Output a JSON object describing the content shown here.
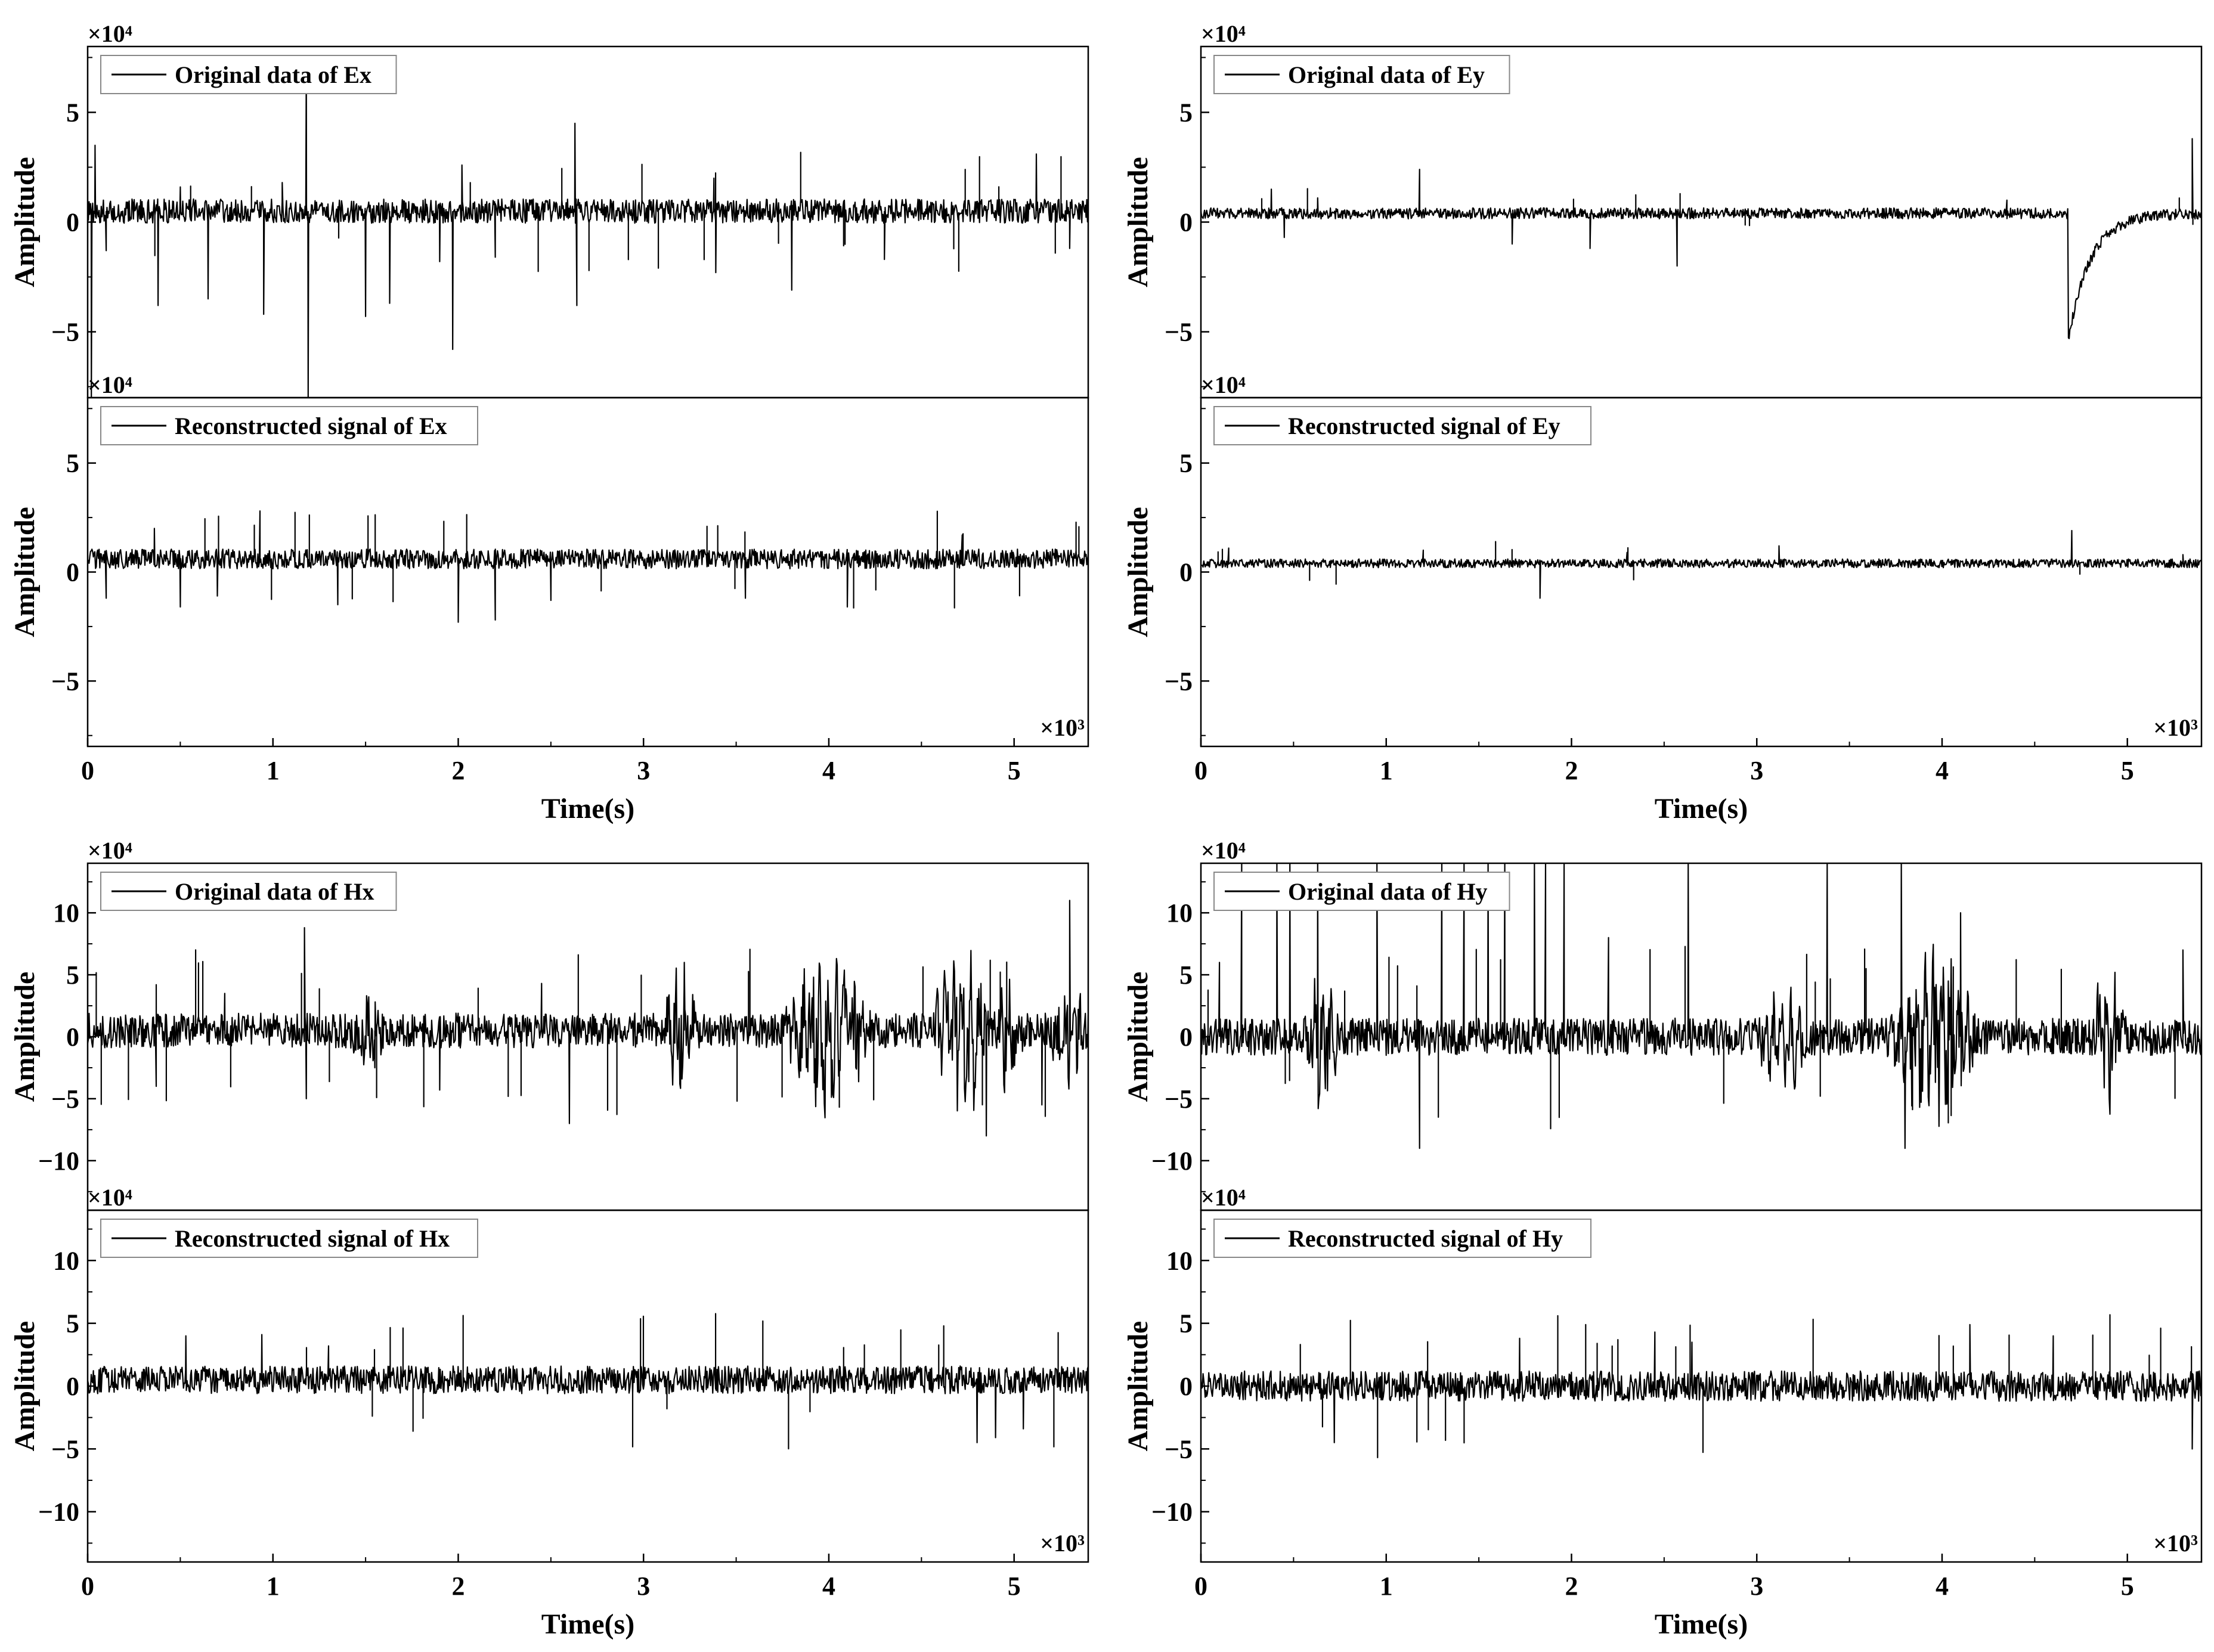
{
  "figure": {
    "x_multiplier": "×10³",
    "y_multiplier": "×10⁴"
  },
  "chart_data": [
    {
      "type": "line",
      "id": "ex",
      "xlabel": "Time(s)",
      "ylabel": "Amplitude",
      "xlim": [
        0,
        5.4
      ],
      "xticks": [
        0,
        1,
        2,
        3,
        4,
        5
      ],
      "ylim": [
        -8,
        8
      ],
      "yticks": [
        -5,
        0,
        5
      ],
      "grid": false,
      "legend_position": "top-left",
      "color": "#000000",
      "panels": [
        {
          "label": "Original data of Ex",
          "baseline": 0.5,
          "noise": 0.55,
          "spike_rate": 0.35,
          "spikes": [
            [
              0.02,
              -8.0
            ],
            [
              0.04,
              3.5
            ],
            [
              0.1,
              -1.3
            ],
            [
              0.38,
              -3.8
            ],
            [
              0.5,
              1.6
            ],
            [
              0.65,
              -3.5
            ],
            [
              0.95,
              -4.2
            ],
            [
              1.05,
              1.8
            ],
            [
              1.18,
              7.5
            ],
            [
              1.19,
              -8.0
            ],
            [
              1.5,
              -4.3
            ],
            [
              1.63,
              -3.7
            ],
            [
              1.9,
              -1.8
            ],
            [
              1.97,
              -5.8
            ],
            [
              2.02,
              2.6
            ],
            [
              2.2,
              -1.6
            ],
            [
              2.63,
              4.5
            ],
            [
              2.64,
              -3.8
            ],
            [
              3.38,
              2.0
            ],
            [
              3.39,
              -2.3
            ],
            [
              3.8,
              -3.1
            ],
            [
              4.3,
              -1.7
            ],
            [
              5.12,
              3.1
            ],
            [
              5.3,
              -1.2
            ]
          ]
        },
        {
          "label": "Reconstructed signal of Ex",
          "baseline": 0.6,
          "noise": 0.45,
          "spike_rate": 0.25,
          "spikes": [
            [
              0.1,
              -1.2
            ],
            [
              0.36,
              2.0
            ],
            [
              0.5,
              -1.6
            ],
            [
              0.7,
              -1.1
            ],
            [
              0.93,
              2.8
            ],
            [
              1.35,
              -1.5
            ],
            [
              2.0,
              -2.3
            ],
            [
              2.2,
              -2.2
            ],
            [
              2.5,
              -1.3
            ],
            [
              3.55,
              -1.2
            ],
            [
              4.1,
              -1.6
            ],
            [
              4.72,
              1.7
            ]
          ]
        }
      ]
    },
    {
      "type": "line",
      "id": "ey",
      "xlabel": "Time(s)",
      "ylabel": "Amplitude",
      "xlim": [
        0,
        5.4
      ],
      "xticks": [
        0,
        1,
        2,
        3,
        4,
        5
      ],
      "ylim": [
        -8,
        8
      ],
      "yticks": [
        -5,
        0,
        5
      ],
      "grid": false,
      "legend_position": "top-left",
      "color": "#000000",
      "panels": [
        {
          "label": "Original data of Ey",
          "baseline": 0.4,
          "noise": 0.25,
          "spike_rate": 0.12,
          "spikes": [
            [
              0.38,
              1.5
            ],
            [
              0.45,
              -0.7
            ],
            [
              0.63,
              1.1
            ],
            [
              1.18,
              2.4
            ],
            [
              1.68,
              -1.0
            ],
            [
              2.1,
              -1.2
            ],
            [
              2.57,
              -2.0
            ],
            [
              4.35,
              1.0
            ],
            [
              5.35,
              3.8
            ]
          ],
          "events": [
            [
              4.68,
              -5.8,
              0.12
            ]
          ]
        },
        {
          "label": "Reconstructed signal of Ey",
          "baseline": 0.4,
          "noise": 0.2,
          "spike_rate": 0.1,
          "spikes": [
            [
              0.15,
              1.1
            ],
            [
              1.2,
              1.0
            ],
            [
              1.83,
              -1.2
            ],
            [
              2.3,
              0.9
            ],
            [
              3.12,
              1.2
            ],
            [
              4.7,
              1.9
            ],
            [
              5.3,
              0.8
            ]
          ]
        }
      ]
    },
    {
      "type": "line",
      "id": "hx",
      "xlabel": "Time(s)",
      "ylabel": "Amplitude",
      "xlim": [
        0,
        5.4
      ],
      "xticks": [
        0,
        1,
        2,
        3,
        4,
        5
      ],
      "ylim": [
        -14,
        14
      ],
      "yticks": [
        -10,
        -5,
        0,
        5,
        10
      ],
      "grid": false,
      "legend_position": "top-left",
      "color": "#000000",
      "panels": [
        {
          "label": "Original data of Hx",
          "baseline": 0.5,
          "noise": 1.4,
          "spike_rate": 0.3,
          "spikes": [
            [
              0.37,
              -4.0
            ],
            [
              0.37,
              4.2
            ],
            [
              0.74,
              3.5
            ],
            [
              1.17,
              8.8
            ],
            [
              1.18,
              -5.0
            ],
            [
              1.55,
              -2.5
            ],
            [
              1.9,
              -4.3
            ],
            [
              2.45,
              4.3
            ],
            [
              2.6,
              -7.0
            ],
            [
              3.22,
              6.0
            ],
            [
              4.85,
              -8.0
            ],
            [
              5.3,
              11.0
            ],
            [
              5.15,
              -5.5
            ]
          ],
          "bursts": [
            [
              1.4,
              1.6,
              2.2
            ],
            [
              3.1,
              3.3,
              3.5
            ],
            [
              3.75,
              4.25,
              5.5
            ],
            [
              4.55,
              4.9,
              6.0
            ],
            [
              4.9,
              5.05,
              4.0
            ],
            [
              5.18,
              5.4,
              3.0
            ]
          ]
        },
        {
          "label": "Reconstructed signal of Hx",
          "baseline": 0.5,
          "noise": 1.1,
          "spike_rate": 0.25,
          "spikes": [
            [
              0.53,
              4.0
            ],
            [
              0.94,
              4.1
            ],
            [
              1.3,
              3.2
            ],
            [
              4.8,
              -4.5
            ],
            [
              4.9,
              -4.1
            ],
            [
              5.05,
              -3.4
            ]
          ]
        }
      ]
    },
    {
      "type": "line",
      "id": "hy",
      "xlabel": "Time(s)",
      "ylabel": "Amplitude",
      "xlim": [
        0,
        5.4
      ],
      "xticks": [
        0,
        1,
        2,
        3,
        4,
        5
      ],
      "ylim": [
        -14,
        14
      ],
      "yticks": [
        -10,
        -5,
        0,
        5,
        10
      ],
      "grid": false,
      "legend_position": "top-left",
      "color": "#000000",
      "panels": [
        {
          "label": "Original data of Hy",
          "baseline": 0.0,
          "noise": 1.5,
          "spike_rate": 0.35,
          "spikes": [
            [
              0.1,
              6.0
            ],
            [
              0.22,
              14.0
            ],
            [
              0.41,
              14.0
            ],
            [
              0.48,
              14.0
            ],
            [
              0.63,
              14.0
            ],
            [
              0.95,
              14.0
            ],
            [
              1.18,
              -9.0
            ],
            [
              1.3,
              14.0
            ],
            [
              1.42,
              14.0
            ],
            [
              1.55,
              14.0
            ],
            [
              1.64,
              14.0
            ],
            [
              1.8,
              14.0
            ],
            [
              1.86,
              14.0
            ],
            [
              1.96,
              14.0
            ],
            [
              2.2,
              8.0
            ],
            [
              2.63,
              14.0
            ],
            [
              3.38,
              14.0
            ],
            [
              3.78,
              14.0
            ],
            [
              3.8,
              -9.0
            ],
            [
              4.1,
              10.0
            ],
            [
              5.3,
              7.0
            ]
          ],
          "bursts": [
            [
              0.55,
              0.75,
              4.0
            ],
            [
              3.0,
              3.3,
              3.0
            ],
            [
              3.7,
              4.2,
              6.0
            ],
            [
              4.8,
              5.0,
              5.0
            ]
          ]
        },
        {
          "label": "Reconstructed signal of Hy",
          "baseline": 0.0,
          "noise": 1.2,
          "spike_rate": 0.25,
          "spikes": [
            [
              0.72,
              -4.5
            ],
            [
              1.72,
              3.8
            ],
            [
              2.45,
              4.3
            ],
            [
              2.65,
              3.5
            ],
            [
              4.15,
              4.9
            ],
            [
              4.6,
              4.0
            ],
            [
              5.35,
              -5.0
            ]
          ]
        }
      ]
    }
  ]
}
